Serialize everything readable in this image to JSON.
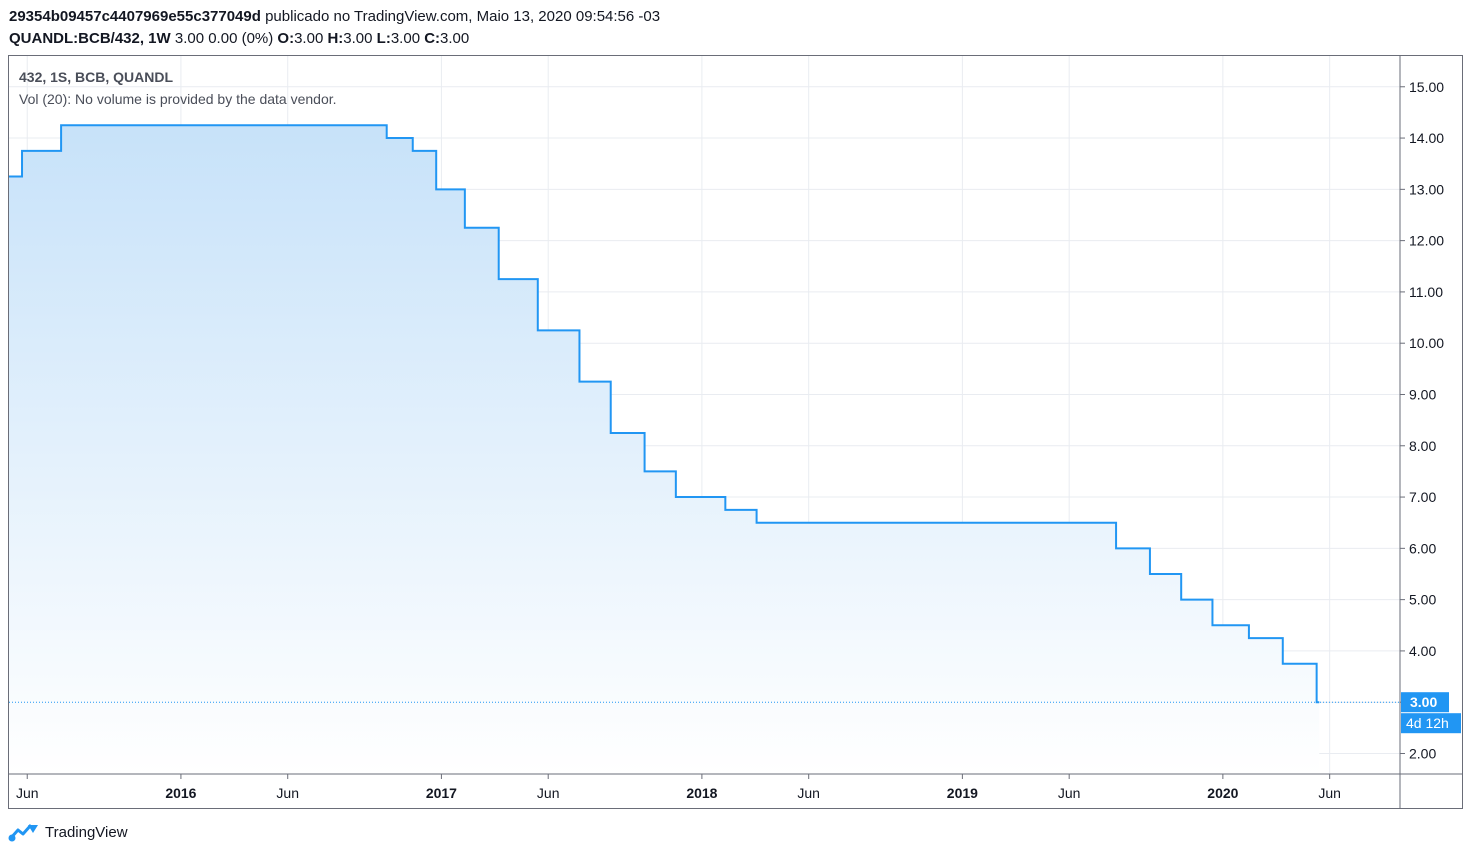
{
  "header": {
    "chart_id": "29354b09457c4407969e55c377049d",
    "published_text": " publicado no TradingView.com, Maio 13, 2020 09:54:56 -03",
    "symbol": "QUANDL:BCB/432, 1W",
    "quote": " 3.00 0.00 (0%) ",
    "o_label": "O:",
    "o_value": "3.00 ",
    "h_label": "H:",
    "h_value": "3.00 ",
    "l_label": "L:",
    "l_value": "3.00 ",
    "c_label": "C:",
    "c_value": "3.00"
  },
  "legend": {
    "series": "432, 1S, BCB, QUANDL",
    "volume": "Vol (20): No volume is provided by the data vendor."
  },
  "branding": {
    "name": "TradingView"
  },
  "colors": {
    "line": "#2196f3",
    "fill_top": "#c7e2f9",
    "fill_bottom": "#ffffff",
    "grid": "#e9ecf1",
    "price_label_bg": "#2196f3"
  },
  "chart_data": {
    "type": "area",
    "title": "432, 1S, BCB, QUANDL",
    "xlabel": "",
    "ylabel": "",
    "ylim": [
      1.6,
      15.6
    ],
    "xlim": [
      2015.34,
      2020.68
    ],
    "y_ticks": [
      "2.00",
      "3.00",
      "4.00",
      "5.00",
      "6.00",
      "7.00",
      "8.00",
      "9.00",
      "10.00",
      "11.00",
      "12.00",
      "13.00",
      "14.00",
      "15.00"
    ],
    "x_ticks": [
      {
        "value": 2015.41,
        "label": "Jun",
        "bold": false
      },
      {
        "value": 2016.0,
        "label": "2016",
        "bold": true
      },
      {
        "value": 2016.41,
        "label": "Jun",
        "bold": false
      },
      {
        "value": 2017.0,
        "label": "2017",
        "bold": true
      },
      {
        "value": 2017.41,
        "label": "Jun",
        "bold": false
      },
      {
        "value": 2018.0,
        "label": "2018",
        "bold": true
      },
      {
        "value": 2018.41,
        "label": "Jun",
        "bold": false
      },
      {
        "value": 2019.0,
        "label": "2019",
        "bold": true
      },
      {
        "value": 2019.41,
        "label": "Jun",
        "bold": false
      },
      {
        "value": 2020.0,
        "label": "2020",
        "bold": true
      },
      {
        "value": 2020.41,
        "label": "Jun",
        "bold": false
      }
    ],
    "series": [
      {
        "name": "432",
        "steps": [
          [
            2015.34,
            13.25
          ],
          [
            2015.39,
            13.75
          ],
          [
            2015.54,
            14.25
          ],
          [
            2016.79,
            14.0
          ],
          [
            2016.89,
            13.75
          ],
          [
            2016.98,
            13.0
          ],
          [
            2017.09,
            12.25
          ],
          [
            2017.22,
            11.25
          ],
          [
            2017.37,
            10.25
          ],
          [
            2017.53,
            9.25
          ],
          [
            2017.65,
            8.25
          ],
          [
            2017.78,
            7.5
          ],
          [
            2017.9,
            7.0
          ],
          [
            2018.09,
            6.75
          ],
          [
            2018.21,
            6.5
          ],
          [
            2019.59,
            6.0
          ],
          [
            2019.72,
            5.5
          ],
          [
            2019.84,
            5.0
          ],
          [
            2019.96,
            4.5
          ],
          [
            2020.1,
            4.25
          ],
          [
            2020.23,
            3.75
          ],
          [
            2020.36,
            3.0
          ]
        ],
        "end_x": 2020.37
      }
    ],
    "last_price": {
      "value": 3.0,
      "label": "3.00",
      "countdown": "4d 12h"
    }
  }
}
